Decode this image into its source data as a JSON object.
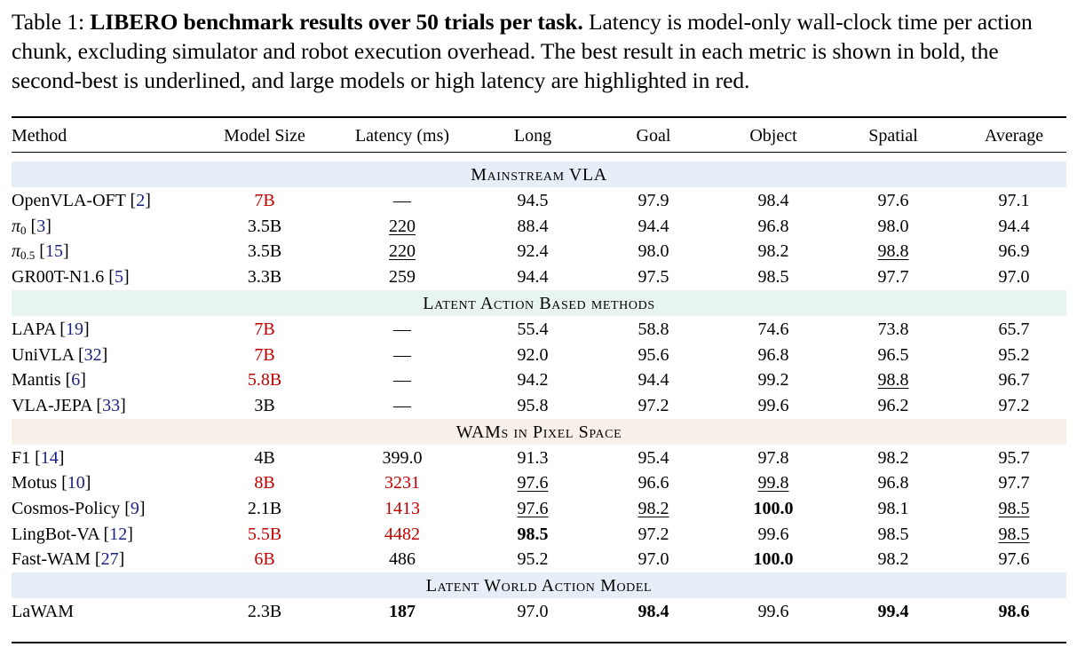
{
  "caption": {
    "label": "Table 1:",
    "bold": "LIBERO benchmark results over 50 trials per task.",
    "rest": "Latency is model-only wall-clock time per action chunk, excluding simulator and robot execution overhead. The best result in each metric is shown in bold, the second-best is underlined, and large models or high latency are highlighted in red."
  },
  "columns": [
    "Method",
    "Model Size",
    "Latency (ms)",
    "Long",
    "Goal",
    "Object",
    "Spatial",
    "Average"
  ],
  "colors": {
    "ref": "#1a237e",
    "red": "#c00000",
    "band_blue": "#e8eef8",
    "band_green": "#e8f5ef",
    "band_peach": "#f8f0e8"
  },
  "sections": [
    {
      "title": "Mainstream VLA",
      "band_color": "#e8eef8",
      "rows": [
        {
          "method": "OpenVLA-OFT",
          "ref": "2",
          "size": "7B",
          "size_red": true,
          "latency": "—",
          "long": "94.5",
          "goal": "97.9",
          "object": "98.4",
          "spatial": "97.6",
          "average": "97.1"
        },
        {
          "method": "π",
          "method_sub": "0",
          "ref": "3",
          "size": "3.5B",
          "latency": "220",
          "latency_underline": true,
          "long": "88.4",
          "goal": "94.4",
          "object": "96.8",
          "spatial": "98.0",
          "average": "94.4"
        },
        {
          "method": "π",
          "method_sub": "0.5",
          "ref": "15",
          "size": "3.5B",
          "latency": "220",
          "latency_underline": true,
          "long": "92.4",
          "goal": "98.0",
          "object": "98.2",
          "spatial": "98.8",
          "spatial_underline": true,
          "average": "96.9"
        },
        {
          "method": "GR00T-N1.6",
          "ref": "5",
          "size": "3.3B",
          "latency": "259",
          "long": "94.4",
          "goal": "97.5",
          "object": "98.5",
          "spatial": "97.7",
          "average": "97.0"
        }
      ]
    },
    {
      "title": "Latent Action Based methods",
      "band_color": "#e8f5ef",
      "rows": [
        {
          "method": "LAPA",
          "ref": "19",
          "size": "7B",
          "size_red": true,
          "latency": "—",
          "long": "55.4",
          "goal": "58.8",
          "object": "74.6",
          "spatial": "73.8",
          "average": "65.7"
        },
        {
          "method": "UniVLA",
          "ref": "32",
          "size": "7B",
          "size_red": true,
          "latency": "—",
          "long": "92.0",
          "goal": "95.6",
          "object": "96.8",
          "spatial": "96.5",
          "average": "95.2"
        },
        {
          "method": "Mantis",
          "ref": "6",
          "size": "5.8B",
          "size_red": true,
          "latency": "—",
          "long": "94.2",
          "goal": "94.4",
          "object": "99.2",
          "spatial": "98.8",
          "spatial_underline": true,
          "average": "96.7"
        },
        {
          "method": "VLA-JEPA",
          "ref": "33",
          "size": "3B",
          "latency": "—",
          "long": "95.8",
          "goal": "97.2",
          "object": "99.6",
          "spatial": "96.2",
          "average": "97.2"
        }
      ]
    },
    {
      "title": "WAMs in Pixel Space",
      "band_color": "#f8f0e8",
      "rows": [
        {
          "method": "F1",
          "ref": "14",
          "size": "4B",
          "latency": "399.0",
          "long": "91.3",
          "goal": "95.4",
          "object": "97.8",
          "spatial": "98.2",
          "average": "95.7"
        },
        {
          "method": "Motus",
          "ref": "10",
          "size": "8B",
          "size_red": true,
          "latency": "3231",
          "latency_red": true,
          "long": "97.6",
          "long_underline": true,
          "goal": "96.6",
          "object": "99.8",
          "object_underline": true,
          "spatial": "96.8",
          "average": "97.7"
        },
        {
          "method": "Cosmos-Policy",
          "ref": "9",
          "size": "2.1B",
          "latency": "1413",
          "latency_red": true,
          "long": "97.6",
          "long_underline": true,
          "goal": "98.2",
          "goal_underline": true,
          "object": "100.0",
          "object_bold": true,
          "spatial": "98.1",
          "average": "98.5",
          "average_underline": true
        },
        {
          "method": "LingBot-VA",
          "ref": "12",
          "size": "5.5B",
          "size_red": true,
          "latency": "4482",
          "latency_red": true,
          "long": "98.5",
          "long_bold": true,
          "goal": "97.2",
          "object": "99.6",
          "spatial": "98.5",
          "average": "98.5",
          "average_underline": true
        },
        {
          "method": "Fast-WAM",
          "ref": "27",
          "size": "6B",
          "size_red": true,
          "latency": "486",
          "long": "95.2",
          "goal": "97.0",
          "object": "100.0",
          "object_bold": true,
          "spatial": "98.2",
          "average": "97.6"
        }
      ]
    },
    {
      "title": "Latent World Action Model",
      "band_color": "#e8eef8",
      "rows": [
        {
          "method": "LaWAM",
          "ref": "",
          "size": "2.3B",
          "latency": "187",
          "latency_bold": true,
          "long": "97.0",
          "goal": "98.4",
          "goal_bold": true,
          "object": "99.6",
          "spatial": "99.4",
          "spatial_bold": true,
          "average": "98.6",
          "average_bold": true
        }
      ]
    }
  ]
}
